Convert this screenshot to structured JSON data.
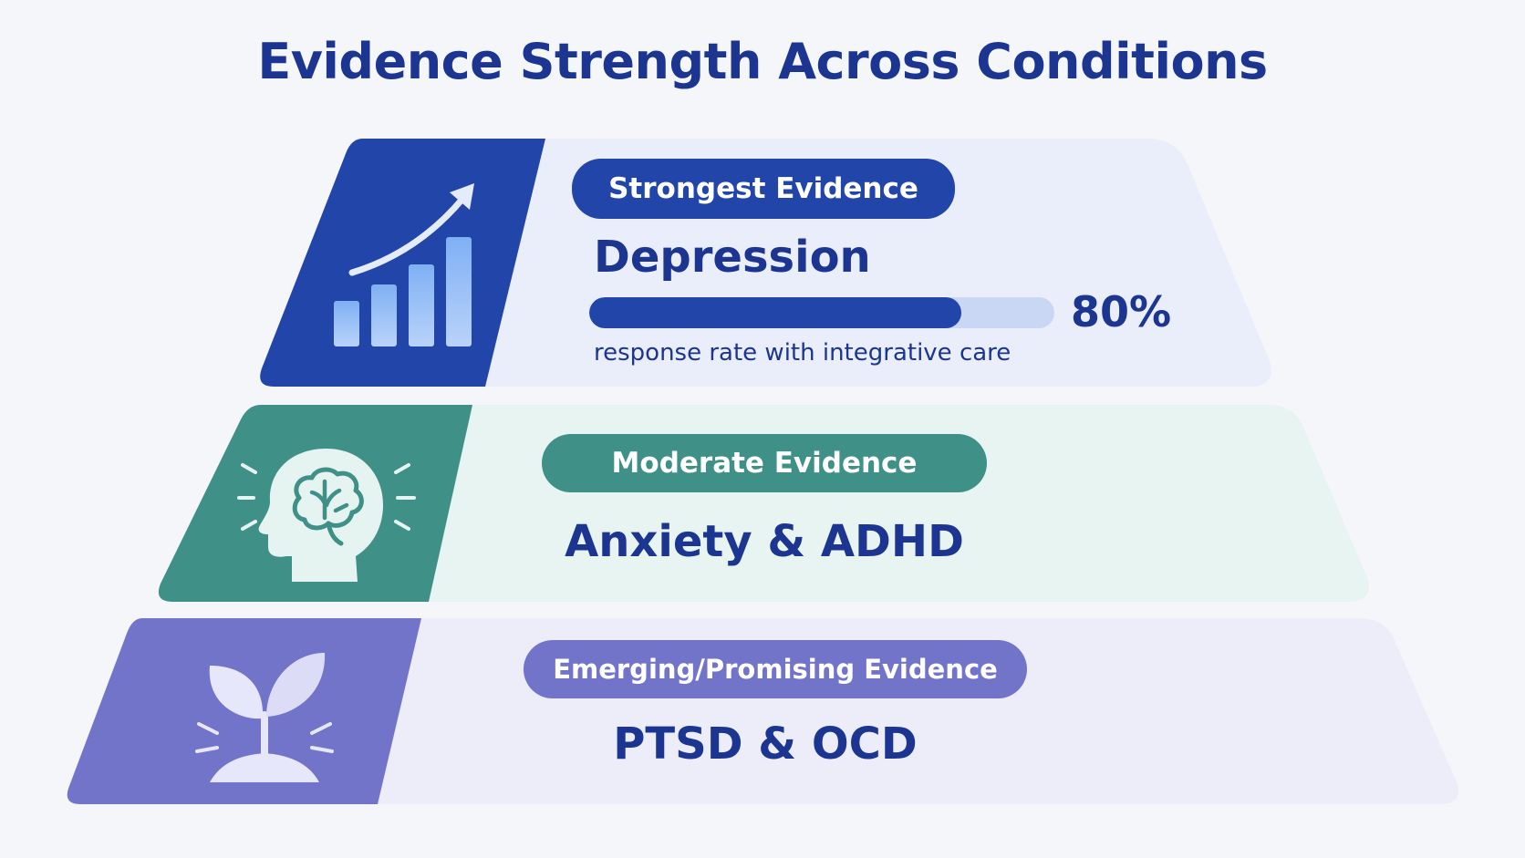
{
  "title": "Evidence Strength Across Conditions",
  "tiers": [
    {
      "level": "Strongest Evidence",
      "condition": "Depression",
      "stat": {
        "value": 80,
        "label": "80%"
      },
      "caption": "response rate with integrative care",
      "icon": "bar-chart-upward-arrow-icon",
      "colors": {
        "accent": "#2145a8",
        "panel": "#e9eefa",
        "pill": "#2145a8"
      }
    },
    {
      "level": "Moderate Evidence",
      "condition": "Anxiety & ADHD",
      "icon": "brain-head-icon",
      "colors": {
        "accent": "#3f9087",
        "panel": "#e8f4f2",
        "pill": "#3f9087"
      }
    },
    {
      "level": "Emerging/Promising Evidence",
      "condition": "PTSD & OCD",
      "icon": "sprout-icon",
      "colors": {
        "accent": "#7274c9",
        "panel": "#ecedf9",
        "pill": "#7274c9"
      }
    }
  ]
}
